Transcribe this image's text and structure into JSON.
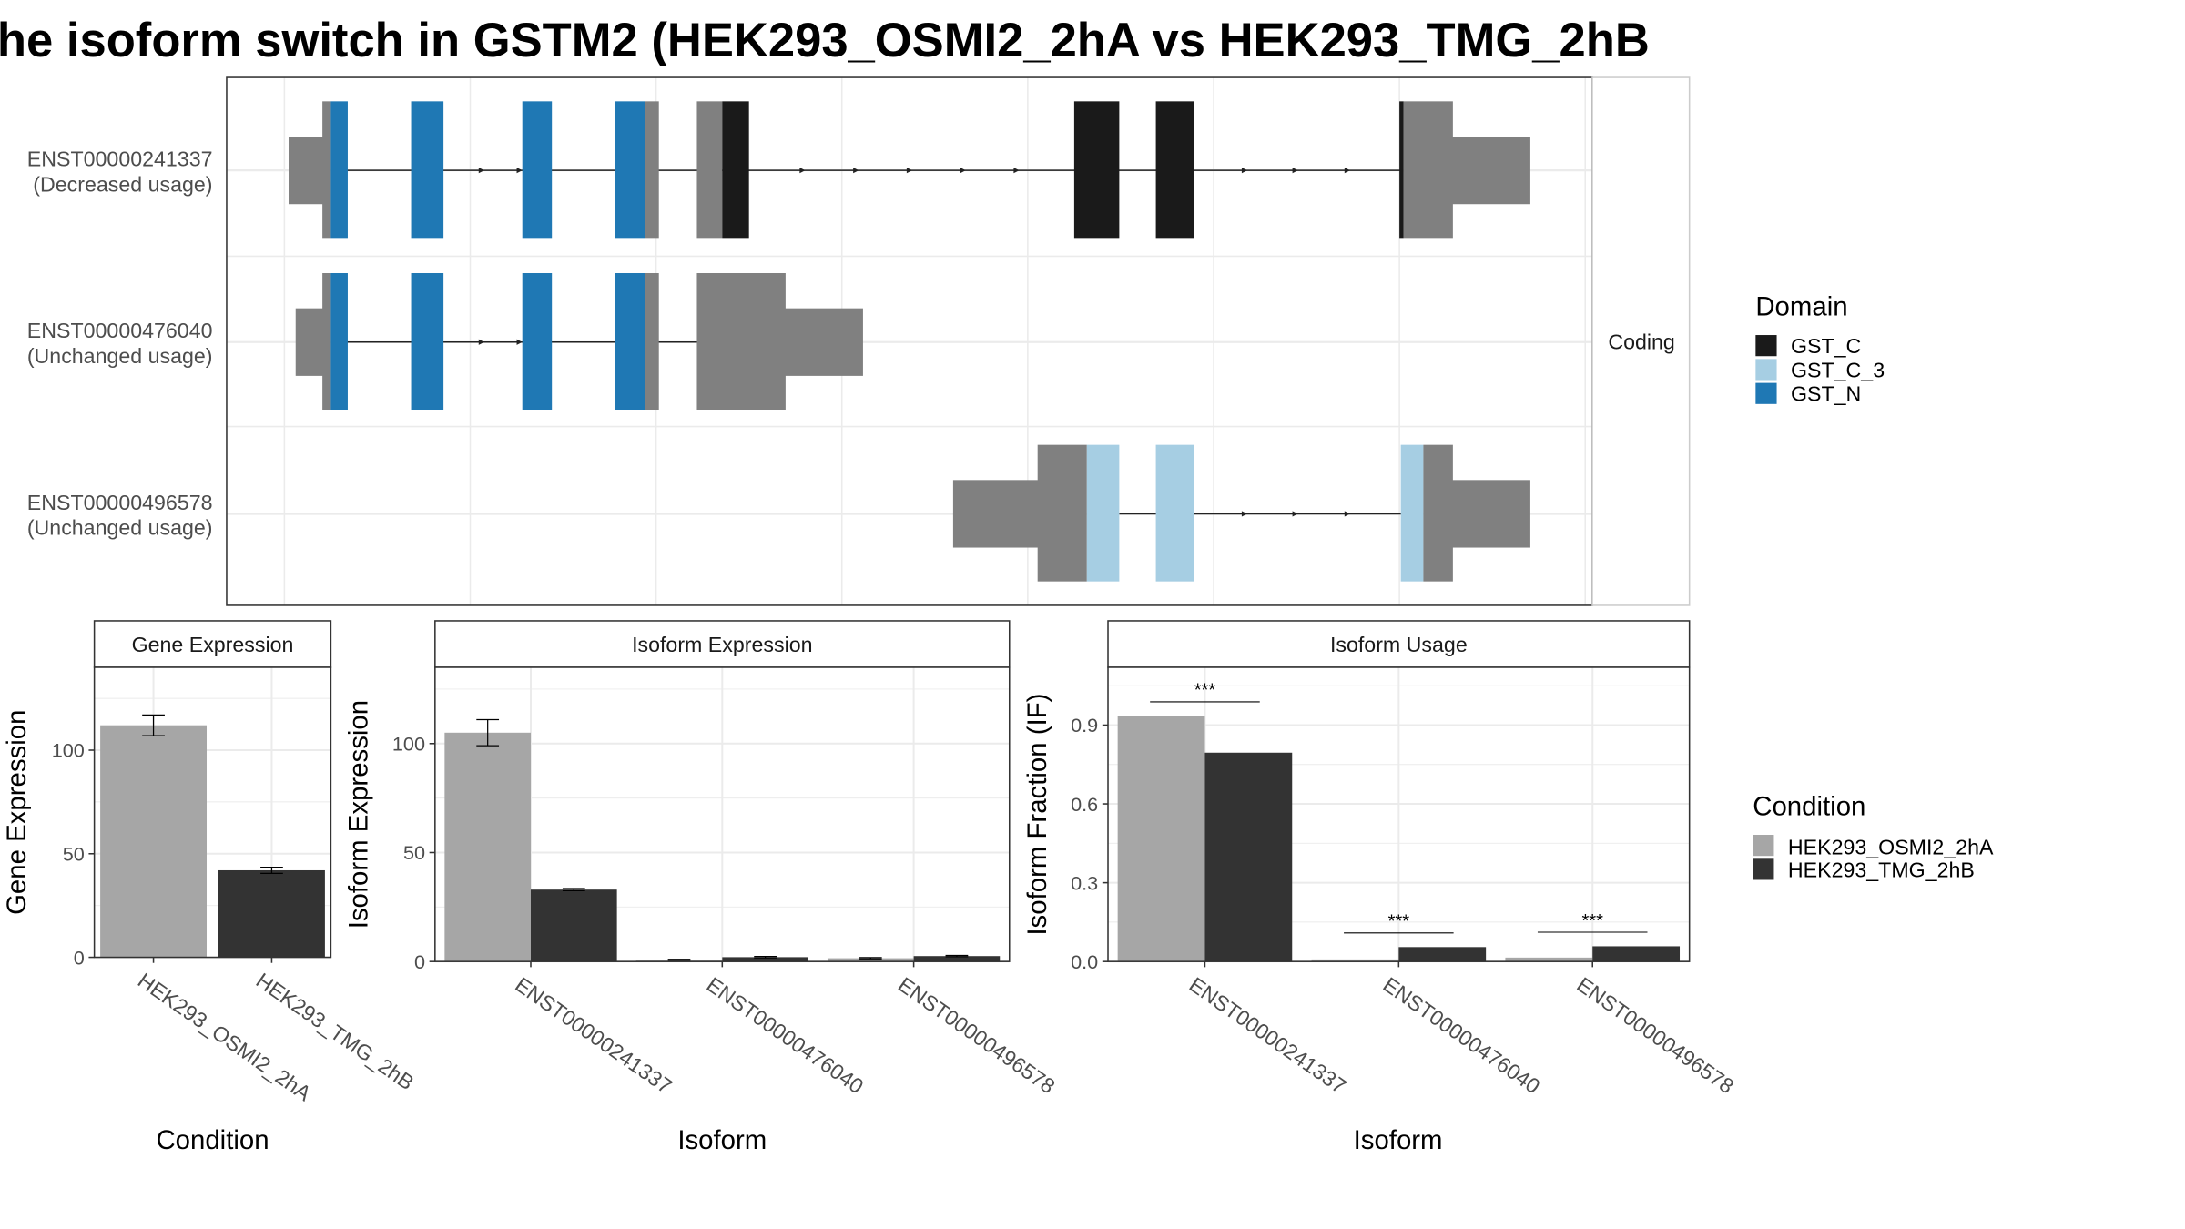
{
  "title": "he isoform switch in GSTM2 (HEK293_OSMI2_2hA vs HEK293_TMG_2hB",
  "colors": {
    "gst_c": "#1a1a1a",
    "gst_c_3": "#a6cee3",
    "gst_n": "#1f78b4",
    "utr": "#808080",
    "cond_a": "#a6a6a6",
    "cond_b": "#333333",
    "grid": "#ebebeb",
    "strip": "#ffffff"
  },
  "transcripts": {
    "strip_label": "Coding",
    "items": [
      {
        "id": "ENST00000241337",
        "status": "(Decreased usage)"
      },
      {
        "id": "ENST00000476040",
        "status": "(Unchanged usage)"
      },
      {
        "id": "ENST00000496578",
        "status": "(Unchanged usage)"
      }
    ]
  },
  "legends": {
    "domain": {
      "title": "Domain",
      "items": [
        {
          "label": "GST_C",
          "color": "#1a1a1a"
        },
        {
          "label": "GST_C_3",
          "color": "#a6cee3"
        },
        {
          "label": "GST_N",
          "color": "#1f78b4"
        }
      ]
    },
    "condition": {
      "title": "Condition",
      "items": [
        {
          "label": "HEK293_OSMI2_2hA",
          "color": "#a6a6a6"
        },
        {
          "label": "HEK293_TMG_2hB",
          "color": "#333333"
        }
      ]
    }
  },
  "chart_data": [
    {
      "type": "bar",
      "title": "Gene Expression",
      "xlabel": "Condition",
      "ylabel": "Gene Expression",
      "categories": [
        "HEK293_OSMI2_2hA",
        "HEK293_TMG_2hB"
      ],
      "values": [
        112,
        42
      ],
      "errors": [
        5,
        1.5
      ],
      "yticks": [
        0,
        50,
        100
      ],
      "ylim": [
        0,
        140
      ],
      "grid": true
    },
    {
      "type": "bar",
      "title": "Isoform Expression",
      "xlabel": "Isoform",
      "ylabel": "Isoform Expression",
      "categories": [
        "ENST00000241337",
        "ENST00000476040",
        "ENST00000496578"
      ],
      "series": [
        {
          "name": "HEK293_OSMI2_2hA",
          "values": [
            105,
            0.8,
            1.5
          ],
          "errors": [
            6,
            0.2,
            0.3
          ]
        },
        {
          "name": "HEK293_TMG_2hB",
          "values": [
            33,
            2,
            2.5
          ],
          "errors": [
            0.5,
            0.3,
            0.3
          ]
        }
      ],
      "yticks": [
        0,
        50,
        100
      ],
      "ylim": [
        0,
        135
      ],
      "grid": true
    },
    {
      "type": "bar",
      "title": "Isoform Usage",
      "xlabel": "Isoform",
      "ylabel": "Isoform Fraction (IF)",
      "categories": [
        "ENST00000241337",
        "ENST00000476040",
        "ENST00000496578"
      ],
      "series": [
        {
          "name": "HEK293_OSMI2_2hA",
          "values": [
            0.935,
            0.008,
            0.015
          ]
        },
        {
          "name": "HEK293_TMG_2hB",
          "values": [
            0.795,
            0.055,
            0.058
          ]
        }
      ],
      "significance": [
        "***",
        "***",
        "***"
      ],
      "yticks": [
        0.0,
        0.3,
        0.6,
        0.9
      ],
      "ytick_labels": [
        "0.0",
        "0.3",
        "0.6",
        "0.9"
      ],
      "ylim": [
        0,
        1.12
      ],
      "grid": true
    }
  ]
}
